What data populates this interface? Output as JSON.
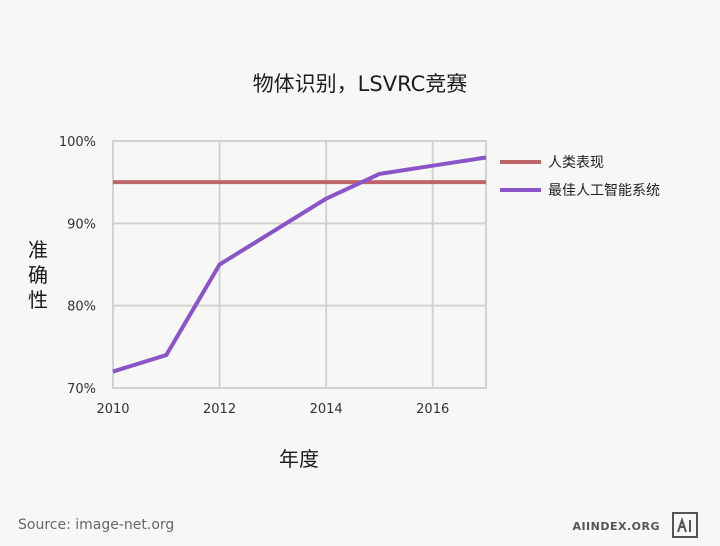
{
  "chart_data": {
    "type": "line",
    "title": "物体识别，LSVRC竞赛",
    "xlabel": "年度",
    "ylabel": "准确性",
    "xlim": [
      2010,
      2017
    ],
    "ylim": [
      70,
      100
    ],
    "x_ticks": [
      2010,
      2012,
      2014,
      2016
    ],
    "x_tick_labels": [
      "2010",
      "2012",
      "2014",
      "2016"
    ],
    "y_ticks": [
      70,
      80,
      90,
      100
    ],
    "y_tick_labels": [
      "70%",
      "80%",
      "90%",
      "100%"
    ],
    "grid": true,
    "legend_position": "right",
    "series": [
      {
        "name": "人类表现",
        "color": "#c0666a",
        "x": [
          2010,
          2017
        ],
        "y": [
          95,
          95
        ]
      },
      {
        "name": "最佳人工智能系统",
        "color": "#8a55c8",
        "x": [
          2010,
          2011,
          2012,
          2014,
          2015,
          2016,
          2017
        ],
        "y": [
          72,
          74,
          85,
          93,
          96,
          97,
          98
        ]
      }
    ]
  },
  "footer": {
    "source": "Source: image-net.org",
    "brand": "AIINDEX.ORG",
    "logo_icon": "ai-logo-icon"
  }
}
